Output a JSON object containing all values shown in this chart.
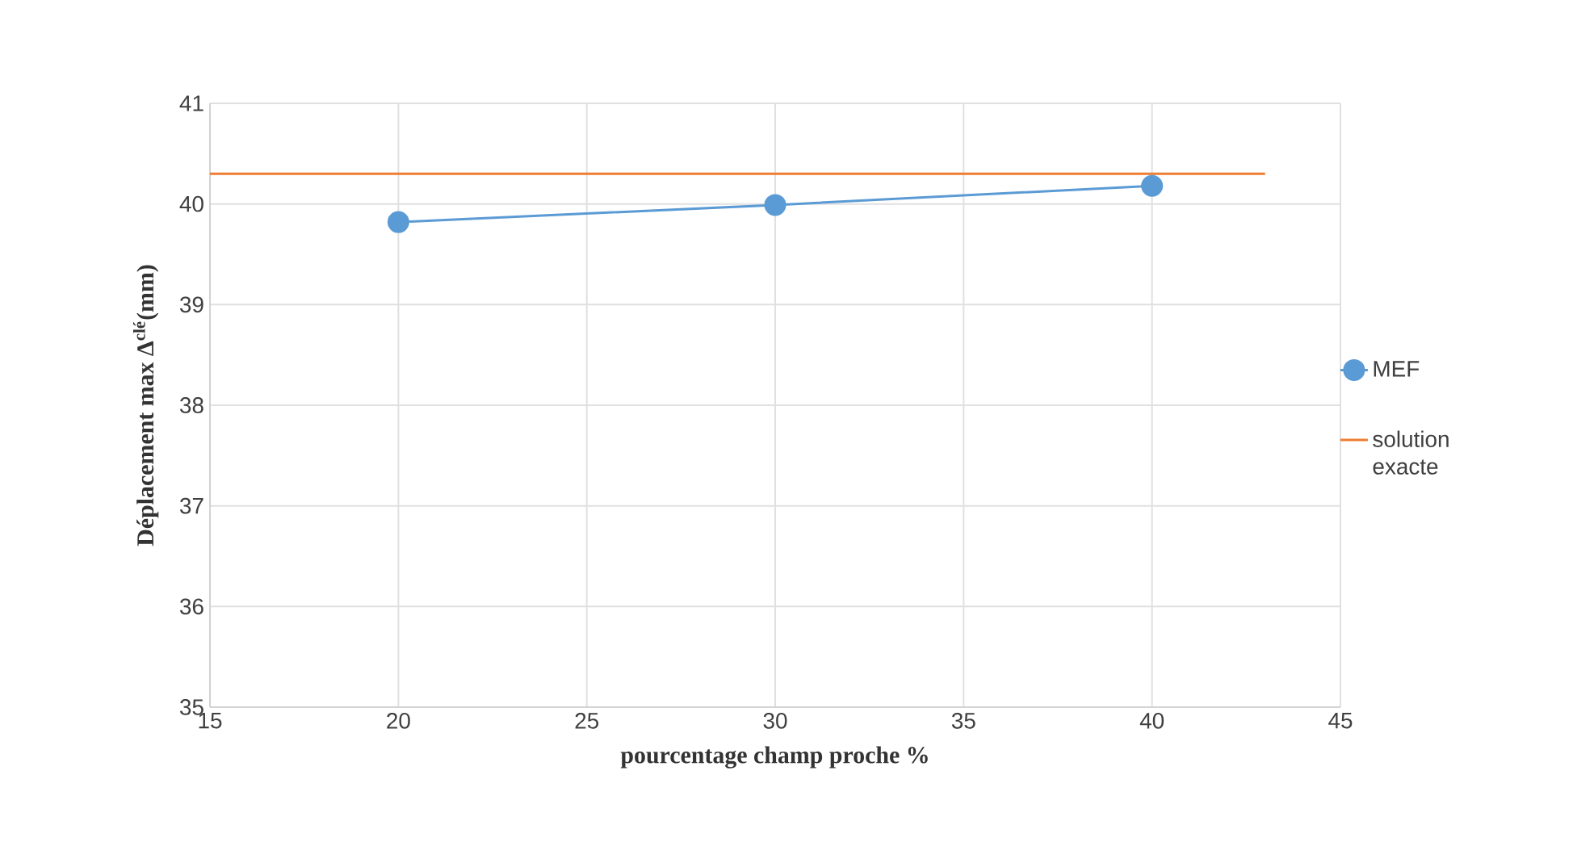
{
  "chart_data": {
    "type": "line",
    "xlabel": "pourcentage champ proche %",
    "ylabel": "Déplacement max Δ$^{clé}$(mm)",
    "xlim": [
      15,
      45
    ],
    "xticks": [
      15,
      20,
      25,
      30,
      35,
      40,
      45
    ],
    "ylim": [
      35,
      41
    ],
    "yticks": [
      35,
      36,
      37,
      38,
      39,
      40,
      41
    ],
    "grid": true,
    "legend": "right",
    "series": [
      {
        "name": "MEF",
        "color": "#5b9bd5",
        "marker": "circle",
        "x": [
          20,
          30,
          40
        ],
        "values": [
          39.82,
          39.99,
          40.18
        ]
      },
      {
        "name": "solution exacte",
        "color": "#ed7d31",
        "marker": "none",
        "x": [
          15,
          43
        ],
        "values": [
          40.3,
          40.3
        ]
      }
    ]
  }
}
